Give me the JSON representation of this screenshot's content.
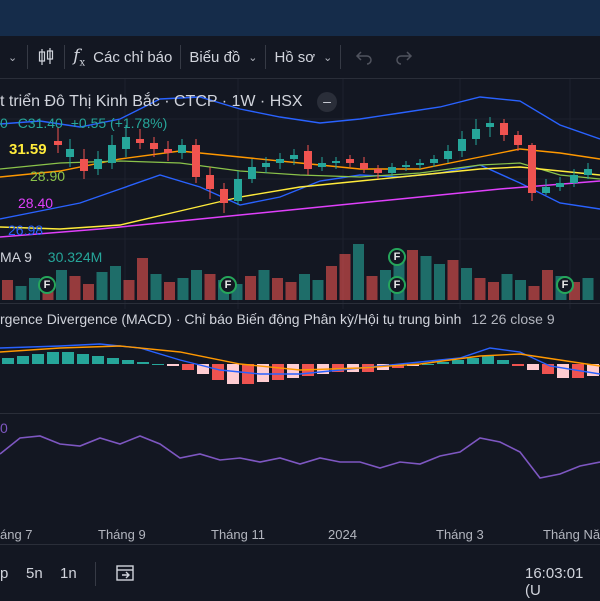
{
  "toolbar": {
    "indicators_label": "Các chỉ báo",
    "chart_type_label": "Biểu đồ",
    "profile_label": "Hồ sơ"
  },
  "symbol": {
    "title": "t triển Đô Thị Kinh Bắc · CTCP · 1W · HSX",
    "open_fragment": "0",
    "close": "C31.40",
    "change": "+0.55 (+1.78%)"
  },
  "price_labels": {
    "bb_upper": "31.59",
    "ma_a": "28.90",
    "ma_b": "28.40",
    "bb_lower": "26.98"
  },
  "volume": {
    "label": "MA 9",
    "value": "30.324M"
  },
  "macd": {
    "title": "rgence Divergence (MACD) · Chỉ báo Biến động Phân kỳ/Hội tụ trung bình",
    "params": "12 26 close 9"
  },
  "rsi": {
    "value_fragment": "0"
  },
  "xaxis": {
    "labels": [
      "áng 7",
      "Tháng 9",
      "Tháng 11",
      "2024",
      "Tháng 3",
      "Tháng Nă"
    ]
  },
  "bottom": {
    "range_p": "p",
    "range_5n": "5n",
    "range_1n": "1n",
    "clock": "16:03:01 (U"
  },
  "events": {
    "badge_label": "F"
  },
  "colors": {
    "up": "#26a69a",
    "down": "#ef5350",
    "bollinger": "#2962ff",
    "orange": "#ff9800",
    "yellow": "#ffeb3b",
    "magenta": "#e040fb",
    "rsi": "#7e57c2"
  }
}
